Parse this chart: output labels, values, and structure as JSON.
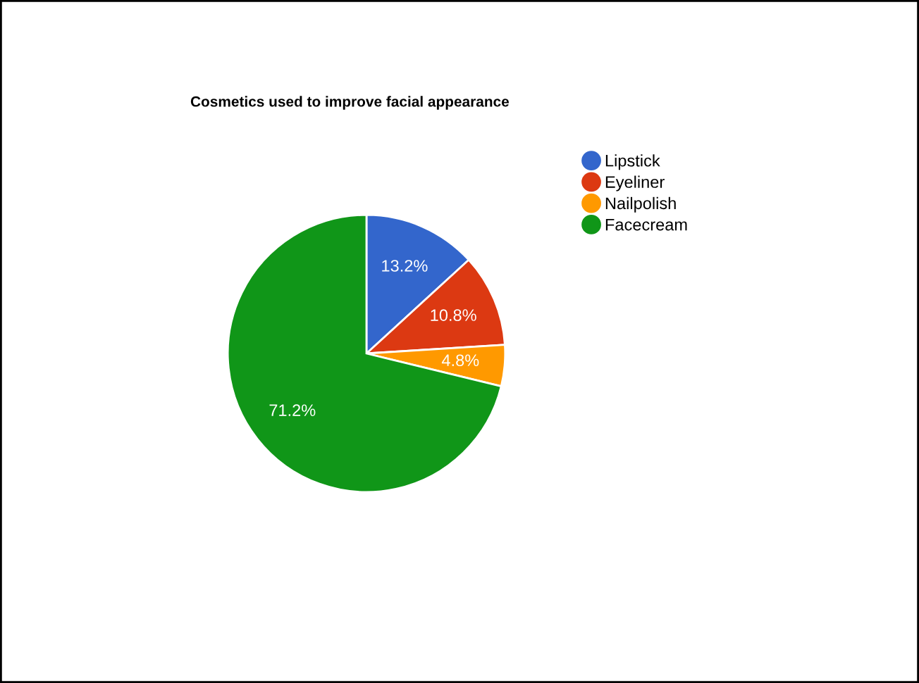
{
  "chart_data": {
    "type": "pie",
    "title": "Cosmetics used to improve facial appearance",
    "categories": [
      "Lipstick",
      "Eyeliner",
      "Nailpolish",
      "Facecream"
    ],
    "values": [
      13.2,
      10.8,
      4.8,
      71.2
    ],
    "colors": [
      "#3366cc",
      "#dc3912",
      "#ff9900",
      "#109618"
    ],
    "value_labels": [
      "13.2%",
      "10.8%",
      "4.8%",
      "71.2%"
    ],
    "legend": "top right"
  }
}
